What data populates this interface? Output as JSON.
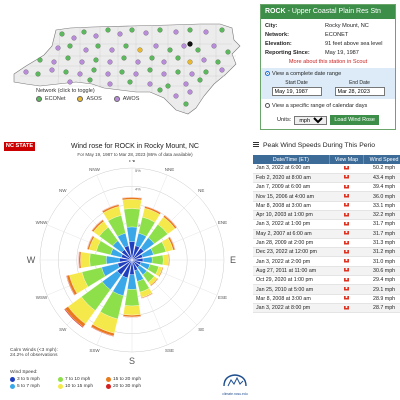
{
  "map": {
    "legend_title": "Network (click to toggle)",
    "legend": [
      {
        "label": "ECONet",
        "color": "#5cb85c"
      },
      {
        "label": "ASOS",
        "color": "#e8b830"
      },
      {
        "label": "AWOS",
        "color": "#b88cd8"
      }
    ]
  },
  "station": {
    "code": "ROCK",
    "name": "- Upper Coastal Plain Res Stn",
    "fields": [
      {
        "key": "City:",
        "value": "Rocky Mount, NC"
      },
      {
        "key": "Network:",
        "value": "ECONET"
      },
      {
        "key": "Elevation:",
        "value": "91 feet above sea level"
      },
      {
        "key": "Reporting Since:",
        "value": "May 19, 1987"
      }
    ],
    "more_link": "More about this station in Scout",
    "option_complete": "View a complete date range",
    "start_label": "Start Date",
    "end_label": "End Date",
    "start_value": "May 19, 1987",
    "end_value": "Mar 28, 2023",
    "option_specific": "View a specific range of calendar days",
    "units_label": "Units:",
    "units_value": "mph",
    "load_button": "Load Wind Rose"
  },
  "windrose": {
    "badge": "NC STATE",
    "title": "Wind rose for ROCK in Rocky Mount, NC",
    "subtitle": "For May 19, 1987 to Mar 28, 2023 (86% of data available)",
    "calm_label": "Calm Winds (<3 mph):",
    "calm_value": "24.2% of observations",
    "speed_title": "Wind Speed:",
    "speed_bins": [
      {
        "label": "3 to 5 mph",
        "color": "#1f3fbf"
      },
      {
        "label": "5 to 7 mph",
        "color": "#3aa8e8"
      },
      {
        "label": "7 to 10 mph",
        "color": "#8ee04a"
      },
      {
        "label": "10 to 15 mph",
        "color": "#f5e84a"
      },
      {
        "label": "15 to 20 mph",
        "color": "#e87a1c"
      },
      {
        "label": "20 to 30 mph",
        "color": "#d42020"
      }
    ],
    "logo_text": "climate.ncsu.edu"
  },
  "chart_data": {
    "type": "windrose",
    "title": "Wind rose for ROCK in Rocky Mount, NC",
    "directions": [
      "N",
      "NNE",
      "NE",
      "ENE",
      "E",
      "ESE",
      "SE",
      "SSE",
      "S",
      "SSW",
      "SW",
      "WSW",
      "W",
      "WNW",
      "NW",
      "NNW"
    ],
    "ring_labels": [
      "1%",
      "2%",
      "3%",
      "4%",
      "5%"
    ],
    "rmax": 5,
    "series": [
      {
        "name": "3 to 5 mph",
        "values": [
          1.0,
          0.8,
          0.8,
          0.6,
          0.6,
          0.5,
          0.5,
          0.6,
          0.8,
          1.0,
          1.0,
          0.8,
          0.7,
          0.6,
          0.7,
          0.8
        ]
      },
      {
        "name": "5 to 7 mph",
        "values": [
          0.8,
          0.7,
          0.7,
          0.6,
          0.5,
          0.5,
          0.5,
          0.6,
          0.8,
          1.0,
          1.0,
          0.9,
          0.7,
          0.6,
          0.6,
          0.7
        ]
      },
      {
        "name": "7 to 10 mph",
        "values": [
          1.0,
          0.9,
          0.9,
          0.7,
          0.6,
          0.5,
          0.5,
          0.6,
          0.9,
          1.3,
          1.4,
          1.1,
          0.9,
          0.8,
          0.9,
          1.0
        ]
      },
      {
        "name": "10 to 15 mph",
        "values": [
          0.5,
          0.5,
          0.5,
          0.4,
          0.3,
          0.2,
          0.2,
          0.3,
          0.5,
          0.8,
          0.9,
          0.7,
          0.5,
          0.4,
          0.4,
          0.5
        ]
      },
      {
        "name": "15 to 20 mph",
        "values": [
          0.1,
          0.1,
          0.1,
          0.1,
          0.05,
          0.05,
          0.05,
          0.05,
          0.1,
          0.15,
          0.2,
          0.15,
          0.1,
          0.1,
          0.1,
          0.1
        ]
      },
      {
        "name": "20 to 30 mph",
        "values": [
          0.02,
          0.02,
          0.02,
          0.02,
          0.01,
          0.01,
          0.01,
          0.01,
          0.02,
          0.03,
          0.05,
          0.03,
          0.02,
          0.02,
          0.02,
          0.02
        ]
      }
    ]
  },
  "peaks": {
    "title": "Peak Wind Speeds During This Perio",
    "columns": [
      "Date/Time (ET)",
      "View Map",
      "Wind Speed"
    ],
    "rows": [
      {
        "dt": "Jan 3, 2022 at 6:00 am",
        "speed": "50.2 mph"
      },
      {
        "dt": "Feb 2, 2020 at 8:00 am",
        "speed": "43.4 mph"
      },
      {
        "dt": "Jan 7, 2009 at 6:00 am",
        "speed": "39.4 mph"
      },
      {
        "dt": "Nov 15, 2006 at 4:00 am",
        "speed": "36.0 mph"
      },
      {
        "dt": "Mar 8, 2008 at 3:00 am",
        "speed": "33.1 mph"
      },
      {
        "dt": "Apr 10, 2003 at 1:00 pm",
        "speed": "32.2 mph"
      },
      {
        "dt": "Jan 3, 2022 at 1:00 pm",
        "speed": "31.7 mph"
      },
      {
        "dt": "May 2, 2007 at 6:00 am",
        "speed": "31.7 mph"
      },
      {
        "dt": "Jan 28, 2009 at 2:00 pm",
        "speed": "31.3 mph"
      },
      {
        "dt": "Dec 23, 2022 at 12:00 pm",
        "speed": "31.2 mph"
      },
      {
        "dt": "Jan 3, 2022 at 2:00 pm",
        "speed": "31.0 mph"
      },
      {
        "dt": "Aug 27, 2011 at 11:00 am",
        "speed": "30.6 mph"
      },
      {
        "dt": "Oct 29, 2020 at 1:00 pm",
        "speed": "29.4 mph"
      },
      {
        "dt": "Jan 25, 2010 at 5:00 am",
        "speed": "29.1 mph"
      },
      {
        "dt": "Mar 8, 2008 at 3:00 am",
        "speed": "28.9 mph"
      },
      {
        "dt": "Jan 3, 2022 at 8:00 pm",
        "speed": "28.7 mph"
      }
    ]
  }
}
